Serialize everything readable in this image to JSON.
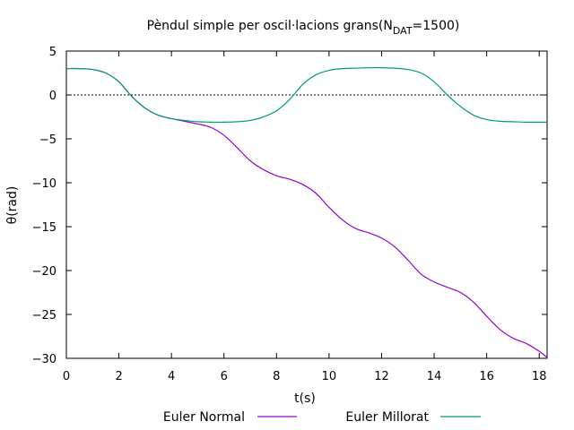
{
  "chart_data": {
    "type": "line",
    "title": "Pèndul simple per oscil·lacions grans(N",
    "title_subscript": "DAT",
    "title_suffix": "=1500)",
    "xlabel": "t(s)",
    "ylabel": "θ(rad)",
    "xlim": [
      0,
      18.3
    ],
    "ylim": [
      -30,
      5
    ],
    "xticks": [
      0,
      2,
      4,
      6,
      8,
      10,
      12,
      14,
      16,
      18
    ],
    "yticks": [
      5,
      0,
      -5,
      -10,
      -15,
      -20,
      -25,
      -30
    ],
    "grid": false,
    "zero_line": true,
    "legend_position": "bottom",
    "series": [
      {
        "name": "Euler Normal",
        "color": "#9400d3",
        "x": [
          0,
          0.5,
          1.0,
          1.5,
          2.0,
          2.5,
          3.0,
          3.5,
          4.0,
          4.5,
          5.0,
          5.5,
          6.0,
          6.5,
          7.0,
          7.5,
          8.0,
          8.5,
          9.0,
          9.5,
          10.0,
          10.5,
          11.0,
          11.5,
          12.0,
          12.5,
          13.0,
          13.5,
          14.0,
          14.5,
          15.0,
          15.5,
          16.0,
          16.5,
          17.0,
          17.5,
          18.0,
          18.3
        ],
        "y": [
          3.0,
          3.0,
          2.9,
          2.5,
          1.5,
          -0.2,
          -1.5,
          -2.3,
          -2.7,
          -3.0,
          -3.3,
          -3.7,
          -4.6,
          -6.0,
          -7.5,
          -8.5,
          -9.2,
          -9.6,
          -10.2,
          -11.2,
          -12.8,
          -14.2,
          -15.2,
          -15.7,
          -16.3,
          -17.3,
          -18.8,
          -20.4,
          -21.3,
          -21.9,
          -22.5,
          -23.6,
          -25.2,
          -26.7,
          -27.7,
          -28.3,
          -29.2,
          -29.9
        ]
      },
      {
        "name": "Euler Millorat",
        "color": "#009e73",
        "x": [
          0,
          0.5,
          1.0,
          1.5,
          2.0,
          2.5,
          3.0,
          3.5,
          4.0,
          4.5,
          5.0,
          5.5,
          6.0,
          6.5,
          7.0,
          7.5,
          8.0,
          8.5,
          9.0,
          9.5,
          10.0,
          10.5,
          11.0,
          11.5,
          12.0,
          12.5,
          13.0,
          13.5,
          14.0,
          14.5,
          15.0,
          15.5,
          16.0,
          16.5,
          17.0,
          17.5,
          18.0,
          18.3
        ],
        "y": [
          3.0,
          3.0,
          2.9,
          2.5,
          1.5,
          -0.2,
          -1.5,
          -2.3,
          -2.7,
          -2.9,
          -3.05,
          -3.1,
          -3.1,
          -3.05,
          -2.9,
          -2.5,
          -1.8,
          -0.5,
          1.2,
          2.3,
          2.8,
          3.0,
          3.05,
          3.1,
          3.1,
          3.05,
          2.9,
          2.5,
          1.5,
          0.0,
          -1.3,
          -2.3,
          -2.8,
          -3.0,
          -3.05,
          -3.1,
          -3.1,
          -3.1
        ]
      }
    ]
  }
}
